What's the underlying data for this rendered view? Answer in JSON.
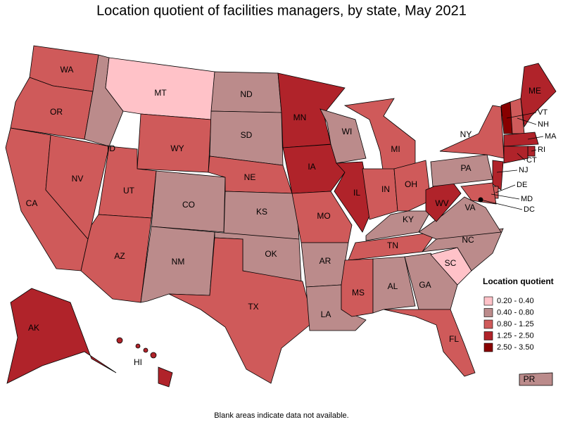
{
  "title": "Location quotient of facilities managers, by state, May 2021",
  "legend": {
    "title": "Location quotient",
    "entries": [
      {
        "label": "0.20 - 0.40",
        "color": "#ffc2c8"
      },
      {
        "label": "0.40 - 0.80",
        "color": "#bb8b8b"
      },
      {
        "label": "0.80 - 1.25",
        "color": "#cf5a5a"
      },
      {
        "label": "1.25 - 2.50",
        "color": "#b0232a"
      },
      {
        "label": "2.50 - 3.50",
        "color": "#880000"
      }
    ]
  },
  "states": [
    {
      "label": "WA",
      "color": "#cf5a5a"
    },
    {
      "label": "OR",
      "color": "#cf5a5a"
    },
    {
      "label": "CA",
      "color": "#cf5a5a"
    },
    {
      "label": "NV",
      "color": "#cf5a5a"
    },
    {
      "label": "ID",
      "color": "#bb8b8b"
    },
    {
      "label": "MT",
      "color": "#ffc2c8"
    },
    {
      "label": "WY",
      "color": "#cf5a5a"
    },
    {
      "label": "UT",
      "color": "#cf5a5a"
    },
    {
      "label": "AZ",
      "color": "#cf5a5a"
    },
    {
      "label": "CO",
      "color": "#bb8b8b"
    },
    {
      "label": "NM",
      "color": "#bb8b8b"
    },
    {
      "label": "ND",
      "color": "#bb8b8b"
    },
    {
      "label": "SD",
      "color": "#bb8b8b"
    },
    {
      "label": "NE",
      "color": "#cf5a5a"
    },
    {
      "label": "KS",
      "color": "#bb8b8b"
    },
    {
      "label": "OK",
      "color": "#bb8b8b"
    },
    {
      "label": "TX",
      "color": "#cf5a5a"
    },
    {
      "label": "MN",
      "color": "#b0232a"
    },
    {
      "label": "IA",
      "color": "#b0232a"
    },
    {
      "label": "MO",
      "color": "#cf5a5a"
    },
    {
      "label": "AR",
      "color": "#bb8b8b"
    },
    {
      "label": "LA",
      "color": "#bb8b8b"
    },
    {
      "label": "WI",
      "color": "#bb8b8b"
    },
    {
      "label": "IL",
      "color": "#b0232a"
    },
    {
      "label": "MI",
      "color": "#cf5a5a"
    },
    {
      "label": "IN",
      "color": "#cf5a5a"
    },
    {
      "label": "OH",
      "color": "#cf5a5a"
    },
    {
      "label": "KY",
      "color": "#bb8b8b"
    },
    {
      "label": "TN",
      "color": "#cf5a5a"
    },
    {
      "label": "MS",
      "color": "#cf5a5a"
    },
    {
      "label": "AL",
      "color": "#bb8b8b"
    },
    {
      "label": "GA",
      "color": "#bb8b8b"
    },
    {
      "label": "FL",
      "color": "#cf5a5a"
    },
    {
      "label": "SC",
      "color": "#ffc2c8"
    },
    {
      "label": "NC",
      "color": "#bb8b8b"
    },
    {
      "label": "VA",
      "color": "#bb8b8b"
    },
    {
      "label": "WV",
      "color": "#b0232a"
    },
    {
      "label": "PA",
      "color": "#bb8b8b"
    },
    {
      "label": "NY",
      "color": "#cf5a5a"
    },
    {
      "label": "VT",
      "color": "#880000"
    },
    {
      "label": "NH",
      "color": "#cf5a5a"
    },
    {
      "label": "ME",
      "color": "#b0232a"
    },
    {
      "label": "MA",
      "color": "#b0232a"
    },
    {
      "label": "RI",
      "color": "#b0232a"
    },
    {
      "label": "CT",
      "color": "#b0232a"
    },
    {
      "label": "NJ",
      "color": "#b0232a"
    },
    {
      "label": "DE",
      "color": "#cf5a5a"
    },
    {
      "label": "MD",
      "color": "#cf5a5a"
    },
    {
      "label": "DC",
      "color": "#000000"
    },
    {
      "label": "AK",
      "color": "#b0232a"
    },
    {
      "label": "HI",
      "color": "#b0232a"
    },
    {
      "label": "PR",
      "color": "#bb8b8b"
    }
  ],
  "note": "Blank areas indicate data not available."
}
